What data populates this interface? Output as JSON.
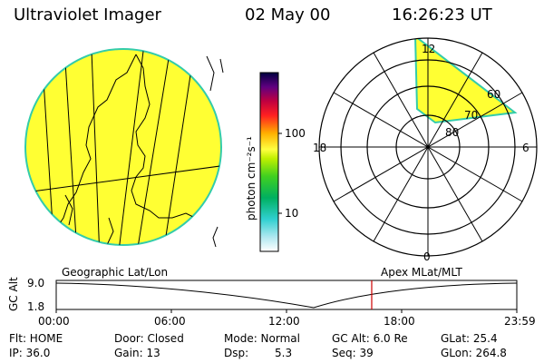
{
  "header": {
    "instrument": "Ultraviolet Imager",
    "date": "02 May 00",
    "time": "16:26:23 UT"
  },
  "colorbar": {
    "unit_label": "photon cm⁻²s⁻¹",
    "tick_100": "100",
    "tick_10": "10"
  },
  "polar_plot": {
    "mlt_top": "12",
    "mlt_left": "18",
    "mlt_right": "6",
    "mlt_bottom": "0",
    "lat_60": "60",
    "lat_70": "70",
    "lat_80": "80"
  },
  "timeline": {
    "left_caption": "Geographic Lat/Lon",
    "right_caption": "Apex MLat/MLT",
    "axis_title": "GC Alt",
    "y_high": "9.0",
    "y_low": "1.8",
    "time_ticks": [
      "00:00",
      "06:00",
      "12:00",
      "18:00",
      "23:59"
    ],
    "current_time_fraction": 0.685
  },
  "info": {
    "flt": "Flt: HOME",
    "ip": "IP: 36.0",
    "door": "Door: Closed",
    "gain": "Gain: 13",
    "mode": "Mode: Normal",
    "dsp_label": "Dsp:",
    "dsp_value": "5.3",
    "gc_alt": "GC Alt: 6.0 Re",
    "seq": "Seq: 39",
    "glat": "GLat: 25.4",
    "glon": "GLon: 264.8"
  },
  "colors": {
    "fill_yellow": "#ffff33",
    "edge_cyan": "#33ccaa",
    "marker_red": "#cc0000"
  }
}
